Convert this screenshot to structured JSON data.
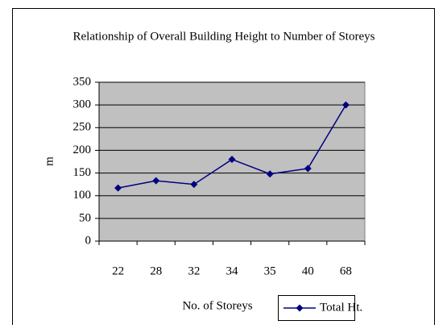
{
  "chart_data": {
    "type": "line",
    "title": "Relationship of Overall Building Height to Number of Storeys",
    "x_label": "No. of Storeys",
    "y_label": "m",
    "categories": [
      "22",
      "28",
      "32",
      "34",
      "35",
      "40",
      "68"
    ],
    "series": [
      {
        "name": "Total Ht.",
        "color": "#000080",
        "values": [
          117,
          133,
          125,
          180,
          148,
          160,
          300
        ]
      }
    ],
    "ylim": [
      0,
      350
    ],
    "yticks": [
      0,
      50,
      100,
      150,
      200,
      250,
      300,
      350
    ],
    "grid": true,
    "legend": "bottom-right",
    "plot_background": "#c0c0c0"
  }
}
